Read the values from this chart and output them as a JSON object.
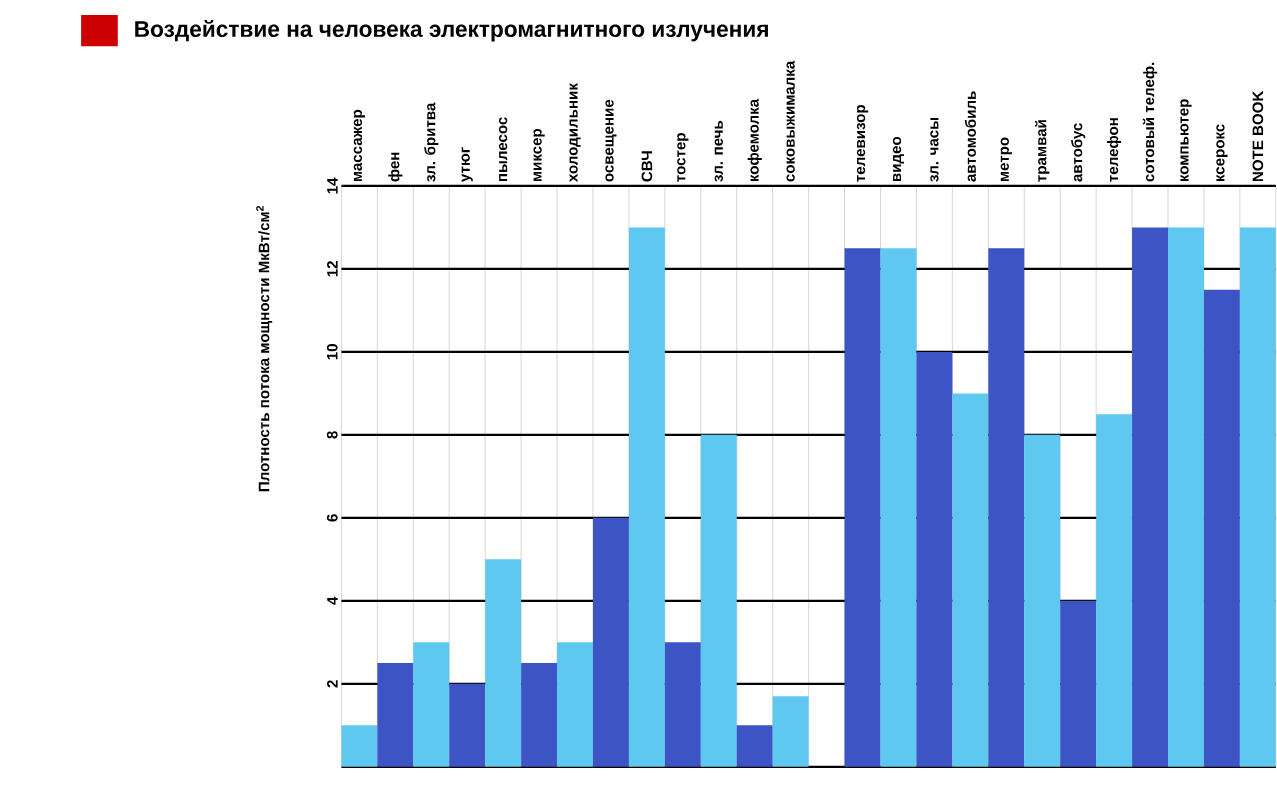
{
  "chart_data": {
    "type": "bar",
    "title": "Воздействие на человека электромагнитного излучения",
    "ylabel": "Плотность потока мощности МкВт/см$^{2}$",
    "categories": [
      "массажер",
      "фен",
      "зл. бритва",
      "утюг",
      "пылесос",
      "миксер",
      "холодильник",
      "освещение",
      "СВЧ",
      "тостер",
      "зл. печь",
      "кофемолка",
      "соковыжималка",
      null,
      "телевизор",
      "видео",
      "зл. часы",
      "автомобиль",
      "метро",
      "трамвай",
      "автобус",
      "телефон",
      "сотовый телеф.",
      "компьютер",
      "ксерокс",
      "NOTE BOOK"
    ],
    "values": [
      1,
      2.5,
      3,
      2,
      5,
      2.5,
      3,
      6,
      13,
      3,
      8,
      1,
      1.7,
      null,
      12.5,
      12.5,
      10,
      9,
      12.5,
      8,
      4,
      8.5,
      13,
      13,
      11.5,
      13
    ],
    "colors": [
      "#5ec8f0",
      "#3d55c4",
      "#5ec8f0",
      "#3d55c4",
      "#5ec8f0",
      "#3d55c4",
      "#5ec8f0",
      "#3d55c4",
      "#5ec8f0",
      "#3d55c4",
      "#5ec8f0",
      "#3d55c4",
      "#5ec8f0",
      null,
      "#3d55c4",
      "#5ec8f0",
      "#3d55c4",
      "#5ec8f0",
      "#3d55c4",
      "#5ec8f0",
      "#3d55c4",
      "#5ec8f0",
      "#3d55c4",
      "#5ec8f0",
      "#3d55c4",
      "#5ec8f0"
    ],
    "ylim": [
      0,
      14
    ],
    "yticks": [
      2,
      4,
      6,
      8,
      10,
      12,
      14
    ],
    "grid": "y"
  }
}
